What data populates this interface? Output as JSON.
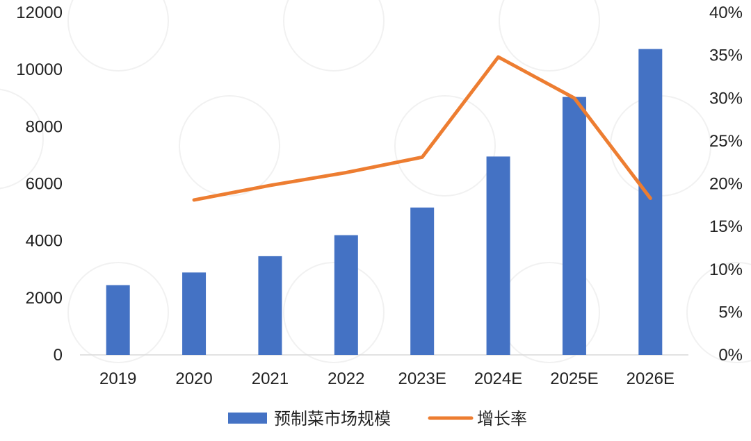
{
  "chart_data": {
    "type": "bar",
    "categories": [
      "2019",
      "2020",
      "2021",
      "2022",
      "2023E",
      "2024E",
      "2025E",
      "2026E"
    ],
    "series": [
      {
        "name": "预制菜市场规模",
        "type": "bar",
        "axis": "left",
        "color": "#4472C4",
        "values": [
          2445,
          2888,
          3459,
          4196,
          5165,
          6952,
          9040,
          10720
        ]
      },
      {
        "name": "增长率",
        "type": "line",
        "axis": "right",
        "color": "#ED7D31",
        "values": [
          null,
          0.181,
          0.198,
          0.213,
          0.231,
          0.348,
          0.3,
          0.183
        ]
      }
    ],
    "y_left": {
      "min": 0,
      "max": 12000,
      "step": 2000,
      "tick_labels": [
        "0",
        "2000",
        "4000",
        "6000",
        "8000",
        "10000",
        "12000"
      ]
    },
    "y_right": {
      "min": 0,
      "max": 0.4,
      "step": 0.05,
      "tick_labels": [
        "0%",
        "5%",
        "10%",
        "15%",
        "20%",
        "25%",
        "30%",
        "35%",
        "40%"
      ]
    },
    "grid": false,
    "legend_position": "bottom",
    "title": "",
    "xlabel": "",
    "ylabel": ""
  }
}
